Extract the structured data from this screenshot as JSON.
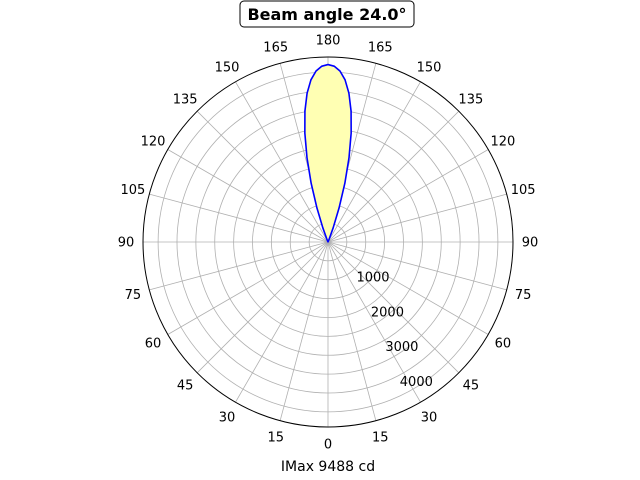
{
  "chart_data": {
    "type": "polar-line",
    "title": "Beam angle 24.0°",
    "xlabel": "IMax 9488 cd",
    "angle_tick_labels": [
      {
        "angle": 0,
        "label": "0"
      },
      {
        "angle": 15,
        "label": "15"
      },
      {
        "angle": 30,
        "label": "30"
      },
      {
        "angle": 45,
        "label": "45"
      },
      {
        "angle": 60,
        "label": "60"
      },
      {
        "angle": 75,
        "label": "75"
      },
      {
        "angle": 90,
        "label": "90"
      },
      {
        "angle": 105,
        "label": "105"
      },
      {
        "angle": 120,
        "label": "120"
      },
      {
        "angle": 135,
        "label": "135"
      },
      {
        "angle": 150,
        "label": "150"
      },
      {
        "angle": 165,
        "label": "165"
      },
      {
        "angle": 180,
        "label": "180"
      },
      {
        "angle": 195,
        "label": "165"
      },
      {
        "angle": 210,
        "label": "150"
      },
      {
        "angle": 225,
        "label": "135"
      },
      {
        "angle": 240,
        "label": "120"
      },
      {
        "angle": 255,
        "label": "105"
      },
      {
        "angle": 270,
        "label": "90"
      },
      {
        "angle": 285,
        "label": "75"
      },
      {
        "angle": 300,
        "label": "60"
      },
      {
        "angle": 315,
        "label": "45"
      },
      {
        "angle": 330,
        "label": "30"
      },
      {
        "angle": 345,
        "label": "15"
      }
    ],
    "radial_ticks": [
      1000,
      2000,
      3000,
      4000
    ],
    "radial_tick_labels": [
      "1000",
      "2000",
      "3000",
      "4000"
    ],
    "rlim": [
      0,
      4900
    ],
    "angle_grid_step": 15,
    "grid": true,
    "series": [
      {
        "color": "#0000ff",
        "fill": "#ffffb3",
        "points": [
          {
            "angle": 0,
            "r": 4700
          },
          {
            "angle": 2,
            "r": 4660
          },
          {
            "angle": 4,
            "r": 4540
          },
          {
            "angle": 6,
            "r": 4320
          },
          {
            "angle": 8,
            "r": 3980
          },
          {
            "angle": 10,
            "r": 3520
          },
          {
            "angle": 12,
            "r": 2950
          },
          {
            "angle": 14,
            "r": 2300
          },
          {
            "angle": 16,
            "r": 1620
          },
          {
            "angle": 18,
            "r": 950
          },
          {
            "angle": 20,
            "r": 400
          },
          {
            "angle": 22,
            "r": 80
          },
          {
            "angle": 24,
            "r": 0
          }
        ]
      }
    ]
  }
}
